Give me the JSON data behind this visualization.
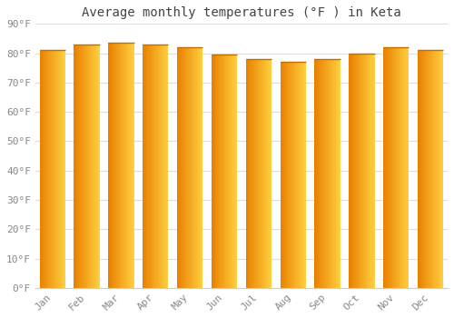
{
  "title": "Average monthly temperatures (°F ) in Keta",
  "months": [
    "Jan",
    "Feb",
    "Mar",
    "Apr",
    "May",
    "Jun",
    "Jul",
    "Aug",
    "Sep",
    "Oct",
    "Nov",
    "Dec"
  ],
  "values": [
    81,
    83,
    83.5,
    83,
    82,
    79.5,
    78,
    77,
    78,
    80,
    82,
    81
  ],
  "ylim": [
    0,
    90
  ],
  "yticks": [
    0,
    10,
    20,
    30,
    40,
    50,
    60,
    70,
    80,
    90
  ],
  "ytick_labels": [
    "0°F",
    "10°F",
    "20°F",
    "30°F",
    "40°F",
    "50°F",
    "60°F",
    "70°F",
    "80°F",
    "90°F"
  ],
  "bar_color_left": "#E88000",
  "bar_color_right": "#FFD040",
  "bar_edge_color": "#C07000",
  "background_color": "#FFFFFF",
  "plot_bg_color": "#FFFFFF",
  "title_fontsize": 10,
  "tick_fontsize": 8,
  "grid_color": "#DDDDDD",
  "font_family": "monospace"
}
